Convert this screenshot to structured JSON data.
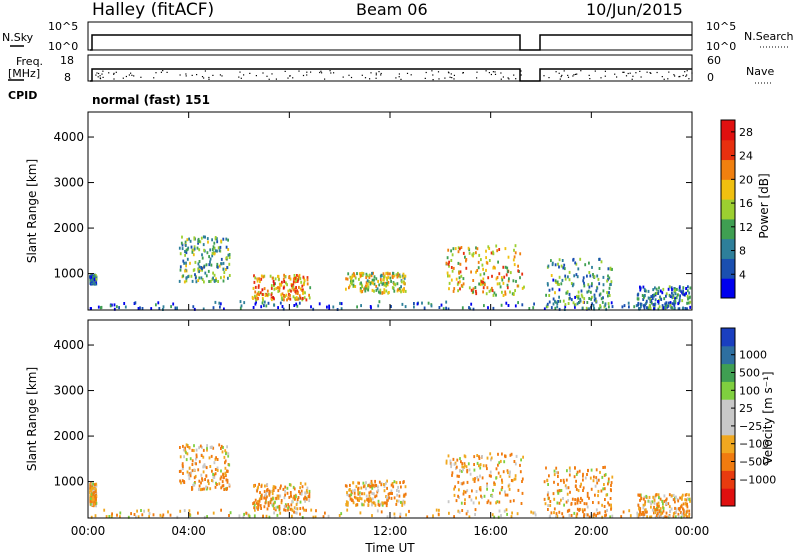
{
  "header": {
    "station": "Halley (fitACF)",
    "beam": "Beam 06",
    "date": "10/Jun/2015"
  },
  "noise_panel": {
    "left_label": "N.Sky",
    "left_ticks": [
      "10^5",
      "10^0"
    ],
    "right_label": "N.Search",
    "right_ticks": [
      "10^5",
      "10^0"
    ]
  },
  "freq_panel": {
    "left_label_1": "Freq.",
    "left_label_2": "[MHz]",
    "left_ticks": [
      "18",
      "8"
    ],
    "right_label": "Nave",
    "right_ticks": [
      "60",
      "0"
    ]
  },
  "cpid": {
    "label": "CPID",
    "value": "normal (fast) 151"
  },
  "colors": {
    "power_scale": [
      "#0000ee",
      "#1a4fb0",
      "#2e7f9a",
      "#3f9f52",
      "#9ccf30",
      "#f0c010",
      "#f08010",
      "#e83010",
      "#e01010"
    ],
    "velocity_scale": [
      "#e01010",
      "#e83b10",
      "#f07b10",
      "#f0a820",
      "#c8c8c8",
      "#c8c8c8",
      "#7fcf3f",
      "#3f9f52",
      "#2e6fa0",
      "#1a3fc0"
    ]
  },
  "chart_data": [
    {
      "type": "heatmap",
      "name": "power",
      "ylabel": "Slant Range [km]",
      "yticks": [
        "1000",
        "2000",
        "3000",
        "4000"
      ],
      "ylim": [
        200,
        4550
      ],
      "xlim_hours": [
        0,
        24
      ],
      "xticks": [
        "00:00",
        "04:00",
        "08:00",
        "12:00",
        "16:00",
        "20:00",
        "00:00"
      ],
      "colorbar": {
        "label": "Power [dB]",
        "ticks": [
          "4",
          "8",
          "12",
          "16",
          "20",
          "24",
          "28"
        ],
        "range": [
          0,
          30
        ]
      },
      "echo_regions": [
        {
          "t": [
            0.0,
            0.3
          ],
          "r": [
            800,
            1000
          ],
          "v": 8
        },
        {
          "t": [
            0.0,
            24.0
          ],
          "r": [
            180,
            420
          ],
          "v": 6
        },
        {
          "t": [
            3.6,
            5.6
          ],
          "r": [
            850,
            1850
          ],
          "v": 12
        },
        {
          "t": [
            6.5,
            8.8
          ],
          "r": [
            450,
            1000
          ],
          "v": 20
        },
        {
          "t": [
            10.2,
            12.6
          ],
          "r": [
            600,
            1050
          ],
          "v": 16
        },
        {
          "t": [
            14.2,
            17.3
          ],
          "r": [
            550,
            1650
          ],
          "v": 18
        },
        {
          "t": [
            18.1,
            20.8
          ],
          "r": [
            250,
            1350
          ],
          "v": 10
        },
        {
          "t": [
            21.8,
            23.9
          ],
          "r": [
            250,
            750
          ],
          "v": 8
        }
      ]
    },
    {
      "type": "heatmap",
      "name": "velocity",
      "ylabel": "Slant Range [km]",
      "yticks": [
        "1000",
        "2000",
        "3000",
        "4000"
      ],
      "ylim": [
        200,
        4550
      ],
      "xlim_hours": [
        0,
        24
      ],
      "xticks": [
        "00:00",
        "04:00",
        "08:00",
        "12:00",
        "16:00",
        "20:00",
        "00:00"
      ],
      "xlabel": "Time UT",
      "colorbar": {
        "label": "Velocity [m s⁻¹]",
        "ticks": [
          "1000",
          "500",
          "100",
          "25",
          "−25",
          "−100",
          "−500",
          "−1000"
        ]
      },
      "echo_regions": [
        {
          "t": [
            0.0,
            0.3
          ],
          "r": [
            500,
            1000
          ],
          "v": -100
        },
        {
          "t": [
            0.0,
            24.0
          ],
          "r": [
            180,
            420
          ],
          "v": -50
        },
        {
          "t": [
            3.6,
            5.6
          ],
          "r": [
            850,
            1850
          ],
          "v": -100
        },
        {
          "t": [
            6.5,
            8.8
          ],
          "r": [
            400,
            1000
          ],
          "v": -100
        },
        {
          "t": [
            10.2,
            12.6
          ],
          "r": [
            500,
            1050
          ],
          "v": -75
        },
        {
          "t": [
            14.2,
            17.3
          ],
          "r": [
            550,
            1650
          ],
          "v": -100
        },
        {
          "t": [
            18.1,
            20.8
          ],
          "r": [
            250,
            1350
          ],
          "v": -200
        },
        {
          "t": [
            21.8,
            23.9
          ],
          "r": [
            250,
            750
          ],
          "v": -75
        }
      ]
    }
  ]
}
